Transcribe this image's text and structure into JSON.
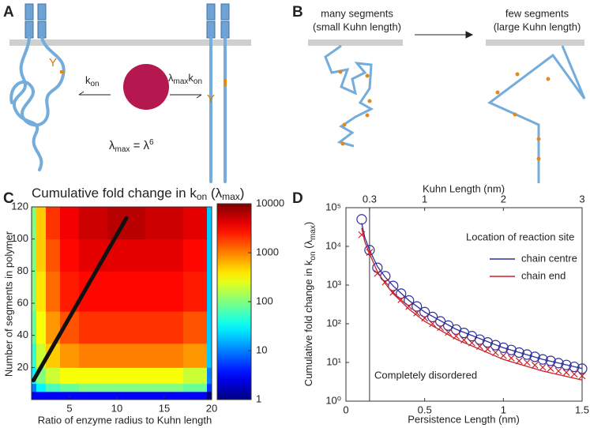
{
  "panel_a": {
    "label": "A",
    "site": "Y",
    "rate_left": [
      "k",
      "on"
    ],
    "rate_right": [
      "λ",
      "max",
      "k",
      "on"
    ],
    "equation": [
      "λ",
      "max",
      " = λ",
      "6"
    ]
  },
  "panel_b": {
    "label": "B",
    "left": [
      "many segments",
      "(small Kuhn length)"
    ],
    "right": [
      "few segments",
      "(large Kuhn length)"
    ]
  },
  "chart_data": [
    {
      "type": "heatmap",
      "panel": "C",
      "title": [
        "Cumulative fold change in k",
        "on",
        " (λ",
        "max",
        ")"
      ],
      "x_label": "Ratio of enzyme radius to Kuhn length",
      "y_label": "Number of segments in polymer",
      "xlim": [
        1,
        20
      ],
      "xticks": [
        5,
        10,
        15,
        20
      ],
      "ylim": [
        0,
        120
      ],
      "yticks": [
        20,
        40,
        60,
        80,
        100,
        120
      ],
      "x_edges": [
        1,
        1.5,
        2.5,
        4,
        6,
        9,
        13,
        17,
        19.5,
        20
      ],
      "y_edges": [
        0,
        5,
        10,
        20,
        35,
        55,
        80,
        100,
        120
      ],
      "z": [
        [
          3,
          3,
          3,
          3,
          3,
          3,
          3,
          3,
          1
        ],
        [
          10,
          30,
          60,
          80,
          100,
          100,
          100,
          80,
          5
        ],
        [
          30,
          100,
          200,
          300,
          300,
          300,
          300,
          200,
          10
        ],
        [
          50,
          200,
          500,
          800,
          1000,
          1000,
          1000,
          800,
          20
        ],
        [
          80,
          300,
          800,
          1500,
          2000,
          2000,
          2000,
          1500,
          20
        ],
        [
          100,
          400,
          1200,
          2500,
          3000,
          3000,
          3000,
          2500,
          20
        ],
        [
          100,
          500,
          1500,
          3000,
          4000,
          4000,
          4000,
          3000,
          20
        ],
        [
          100,
          500,
          2000,
          3500,
          5000,
          6000,
          5000,
          4000,
          20
        ]
      ],
      "zlim": [
        1,
        10000
      ],
      "zticks": [
        1,
        10,
        100,
        1000,
        10000
      ],
      "zlog": true,
      "colormap": "jet",
      "line": {
        "x": [
          1.2,
          11
        ],
        "y": [
          12,
          113
        ],
        "color": "#111111"
      }
    },
    {
      "type": "line",
      "panel": "D",
      "log_y": true,
      "x_label": "Persistence Length (nm)",
      "x2_label": "Kuhn Length (nm)",
      "y_label": [
        "Cumulative fold change in k",
        "on",
        " (λ",
        "max",
        ")"
      ],
      "xlim": [
        0,
        1.5
      ],
      "xticks": [
        0,
        0.5,
        1,
        1.5
      ],
      "x2lim": [
        0,
        3
      ],
      "x2ticks": [
        0.3,
        1,
        2,
        3
      ],
      "ylim": [
        1,
        100000
      ],
      "yticks": [
        {
          "value": 1,
          "label": "10⁰"
        },
        {
          "value": 10,
          "label": "10¹"
        },
        {
          "value": 100,
          "label": "10²"
        },
        {
          "value": 1000,
          "label": "10³"
        },
        {
          "value": 10000,
          "label": "10⁴"
        },
        {
          "value": 100000,
          "label": "10⁵"
        }
      ],
      "vline": 0.15,
      "annotation": "Completely disordered",
      "legend_title": "Location of reaction site",
      "x": [
        0.1,
        0.15,
        0.2,
        0.25,
        0.3,
        0.35,
        0.4,
        0.45,
        0.5,
        0.55,
        0.6,
        0.65,
        0.7,
        0.75,
        0.8,
        0.85,
        0.9,
        0.95,
        1.0,
        1.05,
        1.1,
        1.15,
        1.2,
        1.25,
        1.3,
        1.35,
        1.4,
        1.45,
        1.5
      ],
      "fit_x": [
        0.1,
        0.12,
        0.15,
        0.2,
        0.25,
        0.3,
        0.4,
        0.5,
        0.7,
        1.0,
        1.25,
        1.5
      ],
      "series": [
        {
          "name": "chain centre",
          "color": "#2b2fa0",
          "marker": "circle",
          "values": [
            50000,
            8000,
            2800,
            1700,
            950,
            600,
            400,
            280,
            200,
            150,
            115,
            90,
            71,
            58,
            48,
            39,
            33,
            28,
            24,
            21,
            18,
            16,
            14,
            12,
            11,
            9.6,
            8.6,
            7.7,
            6.9
          ],
          "fit": [
            40000,
            17000,
            8000,
            3000,
            1600,
            950,
            400,
            200,
            72,
            24,
            12,
            7
          ]
        },
        {
          "name": "chain end",
          "color": "#c8202a",
          "marker": "cross",
          "values": [
            20000,
            7000,
            2000,
            1200,
            650,
            420,
            280,
            190,
            140,
            100,
            80,
            60,
            48,
            38,
            32,
            26,
            22,
            18,
            15,
            13,
            11,
            10,
            8.5,
            7.5,
            7,
            6,
            5.5,
            5,
            4.5
          ],
          "fit": [
            30000,
            13000,
            6500,
            2200,
            1100,
            600,
            240,
            115,
            40,
            12,
            6,
            3.5
          ]
        }
      ]
    }
  ]
}
